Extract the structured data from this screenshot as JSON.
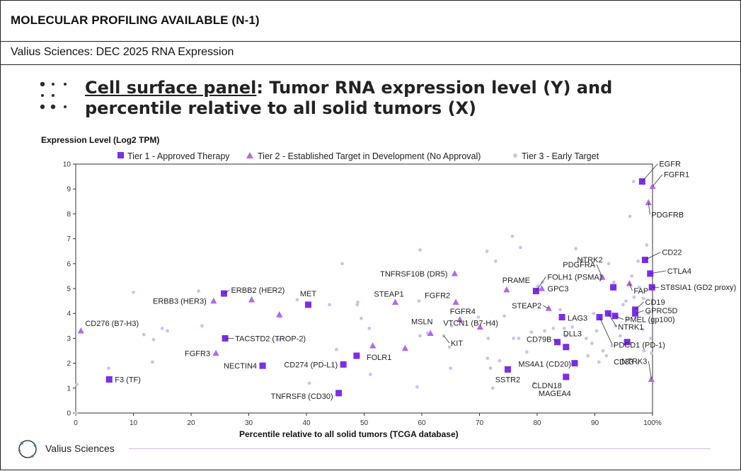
{
  "header": {
    "title": "MOLECULAR PROFILING AVAILABLE (N-1)"
  },
  "subheader": {
    "title": "Valius Sciences: DEC 2025 RNA Expression"
  },
  "panel": {
    "title_underlined": "Cell surface panel",
    "title_rest": ": Tumor RNA expression level (Y) and percentile relative to all solid tumors (X)"
  },
  "footer": {
    "company": "Valius Sciences"
  },
  "colors": {
    "tier1": "#7a2ee8",
    "tier2": "#b26ae6",
    "tier3": "#c8c4ee",
    "footer_line": "#d9b8df"
  },
  "icons": {
    "title_bullet": "dots-grid-icon",
    "logo": "circle-logo-icon"
  },
  "chart_data": {
    "type": "scatter",
    "title": "",
    "xlabel": "Percentile relative to all solid tumors (TCGA database)",
    "ylabel": "Expression Level (Log2 TPM)",
    "xlim": [
      0,
      100
    ],
    "ylim": [
      0,
      10
    ],
    "x_ticks": [
      "0",
      "10",
      "20",
      "30",
      "40",
      "50",
      "60",
      "70",
      "80",
      "90",
      "100%"
    ],
    "y_ticks": [
      "0",
      "1",
      "2",
      "3",
      "4",
      "5",
      "6",
      "7",
      "8",
      "9",
      "10"
    ],
    "grid": false,
    "legend_position": "top",
    "series": [
      {
        "name": "Tier 1 - Approved Therapy",
        "marker": "square",
        "points": [
          {
            "label": "EGFR",
            "x": 98.2,
            "y": 9.3
          },
          {
            "label": "CD22",
            "x": 98.7,
            "y": 6.15
          },
          {
            "label": "CTLA4",
            "x": 99.6,
            "y": 5.6
          },
          {
            "label": "ST8SIA1 (GD2 proxy)",
            "x": 99.9,
            "y": 5.05
          },
          {
            "label": "CD19",
            "x": 97.0,
            "y": 4.15
          },
          {
            "label": "GPRC5D",
            "x": 97.0,
            "y": 4.0
          },
          {
            "label": "PMEL (gp100)",
            "x": 93.5,
            "y": 3.9
          },
          {
            "label": "NTRK1",
            "x": 92.3,
            "y": 4.0
          },
          {
            "label": "PDCD1 (PD-1)",
            "x": 90.8,
            "y": 3.85
          },
          {
            "label": "FOLH1 (PSMA)",
            "x": 79.8,
            "y": 4.9
          },
          {
            "label": "NTRK2",
            "x": 93.2,
            "y": 5.05
          },
          {
            "label": "LAG3",
            "x": 84.3,
            "y": 3.85
          },
          {
            "label": "DLL3",
            "x": 85.0,
            "y": 2.65
          },
          {
            "label": "CD79B",
            "x": 83.5,
            "y": 2.85
          },
          {
            "label": "MS4A1 (CD20)",
            "x": 86.5,
            "y": 2.0
          },
          {
            "label": "CD33",
            "x": 95.6,
            "y": 2.85
          },
          {
            "label": "CLDN18",
            "x": 85.0,
            "y": 1.45
          },
          {
            "label": "ERBB2 (HER2)",
            "x": 25.7,
            "y": 4.8
          },
          {
            "label": "MET",
            "x": 40.3,
            "y": 4.35
          },
          {
            "label": "TACSTD2 (TROP-2)",
            "x": 25.9,
            "y": 3.0
          },
          {
            "label": "NECTIN4",
            "x": 32.4,
            "y": 1.9
          },
          {
            "label": "CD274 (PD-L1)",
            "x": 46.4,
            "y": 1.95
          },
          {
            "label": "FOLR1",
            "x": 48.7,
            "y": 2.3
          },
          {
            "label": "TNFRSF8 (CD30)",
            "x": 45.6,
            "y": 0.8
          },
          {
            "label": "F3 (TF)",
            "x": 5.8,
            "y": 1.35
          },
          {
            "label": "SSTR2",
            "x": 74.9,
            "y": 1.75
          }
        ]
      },
      {
        "name": "Tier 2 - Established Target in Development (No Approval)",
        "marker": "triangle",
        "points": [
          {
            "label": "FGFR1",
            "x": 100.0,
            "y": 9.1
          },
          {
            "label": "PDGFRB",
            "x": 99.3,
            "y": 8.45
          },
          {
            "label": "PDGFRA",
            "x": 91.3,
            "y": 5.45
          },
          {
            "label": "FAP",
            "x": 96.0,
            "y": 5.2
          },
          {
            "label": "TNFRSF10B (DR5)",
            "x": 65.7,
            "y": 5.6
          },
          {
            "label": "PRAME",
            "x": 74.7,
            "y": 4.95
          },
          {
            "label": "GPC3",
            "x": 80.8,
            "y": 5.0
          },
          {
            "label": "STEAP1",
            "x": 55.4,
            "y": 4.45
          },
          {
            "label": "FGFR2",
            "x": 65.9,
            "y": 4.45
          },
          {
            "label": "FGFR4",
            "x": 66.6,
            "y": 3.75
          },
          {
            "label": "STEAP2",
            "x": 82.0,
            "y": 4.2
          },
          {
            "label": "VTCN1 (B7-H4)",
            "x": 70.1,
            "y": 3.45
          },
          {
            "label": "MSLN",
            "x": 61.5,
            "y": 3.2
          },
          {
            "label": "ERBB3 (HER3)",
            "x": 23.9,
            "y": 4.5
          },
          {
            "label": "CD276 (B7-H3)",
            "x": 0.9,
            "y": 3.3
          },
          {
            "label": "FGFR3",
            "x": 24.3,
            "y": 2.4
          },
          {
            "label": "NTRK3",
            "x": 99.8,
            "y": 1.35
          },
          {
            "label": "",
            "x": 30.5,
            "y": 4.55
          },
          {
            "label": "",
            "x": 35.3,
            "y": 3.95
          },
          {
            "label": "",
            "x": 51.5,
            "y": 2.7
          },
          {
            "label": "",
            "x": 57.1,
            "y": 2.6
          }
        ]
      },
      {
        "name": "Tier 3 - Early Target",
        "marker": "circle",
        "points": [
          {
            "label": "KIT",
            "x": 63.8,
            "y": 3.1
          },
          {
            "label": "MAGEA4",
            "x": 79.5,
            "y": 1.2
          },
          {
            "label": "",
            "x": 0.1,
            "y": 0.0
          },
          {
            "label": "",
            "x": 0.2,
            "y": 1.15
          },
          {
            "label": "",
            "x": 5.7,
            "y": 1.8
          },
          {
            "label": "",
            "x": 10.0,
            "y": 4.85
          },
          {
            "label": "",
            "x": 11.8,
            "y": 3.15
          },
          {
            "label": "",
            "x": 13.5,
            "y": 2.95
          },
          {
            "label": "",
            "x": 13.3,
            "y": 2.05
          },
          {
            "label": "",
            "x": 15.0,
            "y": 3.4
          },
          {
            "label": "",
            "x": 15.9,
            "y": 3.3
          },
          {
            "label": "",
            "x": 21.3,
            "y": 4.9
          },
          {
            "label": "",
            "x": 21.9,
            "y": 3.5
          },
          {
            "label": "",
            "x": 35.4,
            "y": 3.85
          },
          {
            "label": "",
            "x": 35.2,
            "y": 2.95
          },
          {
            "label": "",
            "x": 38.4,
            "y": 4.55
          },
          {
            "label": "",
            "x": 40.5,
            "y": 1.2
          },
          {
            "label": "",
            "x": 44.0,
            "y": 4.35
          },
          {
            "label": "",
            "x": 45.2,
            "y": 2.55
          },
          {
            "label": "",
            "x": 46.2,
            "y": 6.0
          },
          {
            "label": "",
            "x": 48.8,
            "y": 4.35
          },
          {
            "label": "",
            "x": 48.9,
            "y": 4.45
          },
          {
            "label": "",
            "x": 49.5,
            "y": 3.8
          },
          {
            "label": "",
            "x": 50.9,
            "y": 3.4
          },
          {
            "label": "",
            "x": 51.1,
            "y": 1.55
          },
          {
            "label": "",
            "x": 59.7,
            "y": 6.55
          },
          {
            "label": "",
            "x": 59.5,
            "y": 4.5
          },
          {
            "label": "",
            "x": 59.2,
            "y": 1.05
          },
          {
            "label": "",
            "x": 59.7,
            "y": 3.1
          },
          {
            "label": "",
            "x": 61.0,
            "y": 3.2
          },
          {
            "label": "",
            "x": 64.8,
            "y": 2.65
          },
          {
            "label": "",
            "x": 65.2,
            "y": 3.5
          },
          {
            "label": "",
            "x": 65.0,
            "y": 1.8
          },
          {
            "label": "",
            "x": 69.8,
            "y": 3.85
          },
          {
            "label": "",
            "x": 71.3,
            "y": 6.5
          },
          {
            "label": "",
            "x": 71.5,
            "y": 3.0
          },
          {
            "label": "",
            "x": 71.4,
            "y": 2.2
          },
          {
            "label": "",
            "x": 71.9,
            "y": 1.8
          },
          {
            "label": "",
            "x": 72.3,
            "y": 1.0
          },
          {
            "label": "",
            "x": 72.8,
            "y": 6.1
          },
          {
            "label": "",
            "x": 73.5,
            "y": 2.1
          },
          {
            "label": "",
            "x": 74.3,
            "y": 3.9
          },
          {
            "label": "",
            "x": 75.9,
            "y": 3.0
          },
          {
            "label": "",
            "x": 75.7,
            "y": 7.1
          },
          {
            "label": "",
            "x": 77.1,
            "y": 6.65
          },
          {
            "label": "",
            "x": 76.8,
            "y": 3.0
          },
          {
            "label": "",
            "x": 78.2,
            "y": 2.45
          },
          {
            "label": "",
            "x": 79.0,
            "y": 3.25
          },
          {
            "label": "",
            "x": 80.1,
            "y": 5.1
          },
          {
            "label": "",
            "x": 80.9,
            "y": 5.25
          },
          {
            "label": "",
            "x": 81.3,
            "y": 3.3
          },
          {
            "label": "",
            "x": 82.8,
            "y": 3.4
          },
          {
            "label": "",
            "x": 84.0,
            "y": 4.15
          },
          {
            "label": "",
            "x": 84.7,
            "y": 3.4
          },
          {
            "label": "",
            "x": 85.0,
            "y": 3.1
          },
          {
            "label": "",
            "x": 86.1,
            "y": 3.45
          },
          {
            "label": "",
            "x": 86.7,
            "y": 6.6
          },
          {
            "label": "",
            "x": 87.8,
            "y": 6.15
          },
          {
            "label": "",
            "x": 88.5,
            "y": 3.0
          },
          {
            "label": "",
            "x": 88.8,
            "y": 2.3
          },
          {
            "label": "",
            "x": 89.5,
            "y": 2.8
          },
          {
            "label": "",
            "x": 89.8,
            "y": 4.0
          },
          {
            "label": "",
            "x": 90.3,
            "y": 3.3
          },
          {
            "label": "",
            "x": 90.7,
            "y": 2.05
          },
          {
            "label": "",
            "x": 91.4,
            "y": 2.5
          },
          {
            "label": "",
            "x": 92.0,
            "y": 2.3
          },
          {
            "label": "",
            "x": 92.4,
            "y": 6.0
          },
          {
            "label": "",
            "x": 93.0,
            "y": 2.7
          },
          {
            "label": "",
            "x": 93.3,
            "y": 5.25
          },
          {
            "label": "",
            "x": 93.6,
            "y": 3.5
          },
          {
            "label": "",
            "x": 94.4,
            "y": 3.1
          },
          {
            "label": "",
            "x": 94.9,
            "y": 4.35
          },
          {
            "label": "",
            "x": 95.4,
            "y": 4.5
          },
          {
            "label": "",
            "x": 95.8,
            "y": 3.75
          },
          {
            "label": "",
            "x": 96.1,
            "y": 7.9
          },
          {
            "label": "",
            "x": 96.7,
            "y": 9.3
          },
          {
            "label": "",
            "x": 96.4,
            "y": 5.5
          },
          {
            "label": "",
            "x": 96.8,
            "y": 4.65
          },
          {
            "label": "",
            "x": 97.5,
            "y": 6.1
          },
          {
            "label": "",
            "x": 97.7,
            "y": 5.05
          },
          {
            "label": "",
            "x": 98.4,
            "y": 4.6
          },
          {
            "label": "",
            "x": 98.3,
            "y": 3.35
          },
          {
            "label": "",
            "x": 98.5,
            "y": 2.5
          },
          {
            "label": "",
            "x": 99.0,
            "y": 6.75
          },
          {
            "label": "",
            "x": 99.3,
            "y": 4.0
          },
          {
            "label": "",
            "x": 99.7,
            "y": 3.0
          },
          {
            "label": "",
            "x": 99.8,
            "y": 2.4
          },
          {
            "label": "",
            "x": 97.4,
            "y": 2.0
          }
        ]
      }
    ]
  }
}
